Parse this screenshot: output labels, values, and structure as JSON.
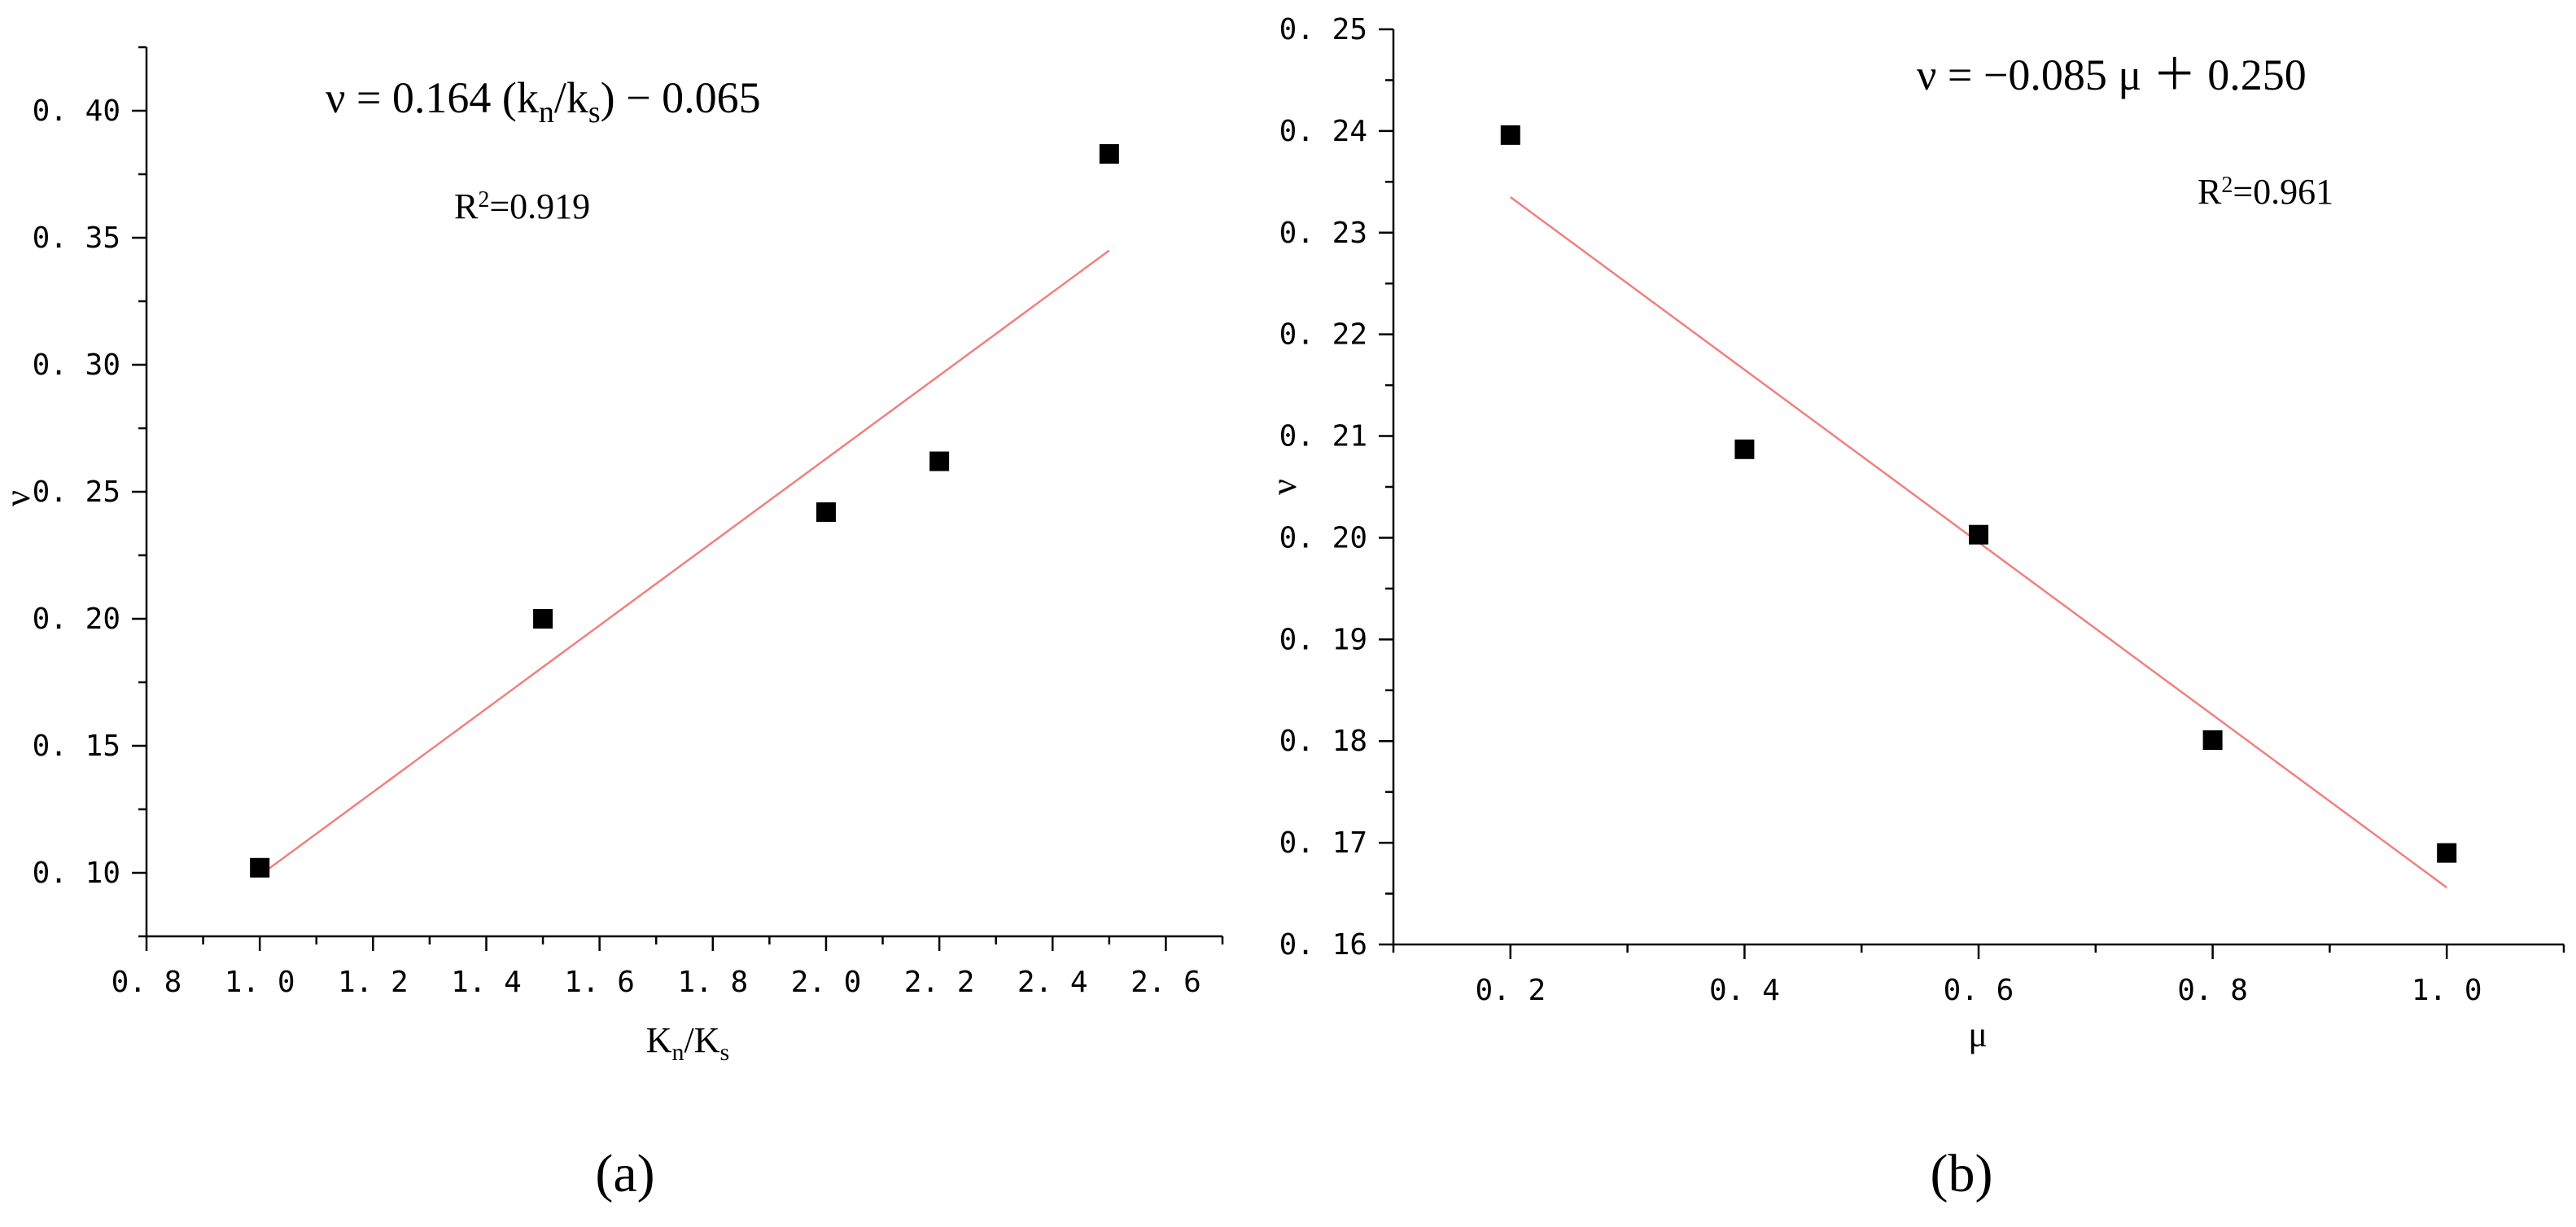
{
  "chart_data": [
    {
      "type": "scatter",
      "panel_label": "(a)",
      "xlabel": "K_n/K_s",
      "ylabel": "ν",
      "xlim": [
        0.8,
        2.7
      ],
      "ylim": [
        0.075,
        0.425
      ],
      "xticks": [
        0.8,
        1.0,
        1.2,
        1.4,
        1.6,
        1.8,
        2.0,
        2.2,
        2.4,
        2.6
      ],
      "xtick_labels": [
        "0. 8",
        "1. 0",
        "1. 2",
        "1. 4",
        "1. 6",
        "1. 8",
        "2. 0",
        "2. 2",
        "2. 4",
        "2. 6"
      ],
      "yticks": [
        0.1,
        0.15,
        0.2,
        0.25,
        0.3,
        0.35,
        0.4
      ],
      "ytick_labels": [
        "0. 10",
        "0. 15",
        "0. 20",
        "0. 25",
        "0. 30",
        "0. 35",
        "0. 40"
      ],
      "points": [
        {
          "x": 1.0,
          "y": 0.102
        },
        {
          "x": 1.5,
          "y": 0.2
        },
        {
          "x": 2.0,
          "y": 0.242
        },
        {
          "x": 2.2,
          "y": 0.262
        },
        {
          "x": 2.5,
          "y": 0.383
        }
      ],
      "fit": {
        "slope": 0.164,
        "intercept": -0.065,
        "x_range": [
          1.0,
          2.5
        ]
      },
      "equation": {
        "lhs": "ν",
        "eq": " = 0.164 (k",
        "sub1": "n",
        "mid": "/k",
        "sub2": "s",
        "rhs": ") − 0.065"
      },
      "r2": {
        "prefix": "R",
        "sup": "2",
        "value": "=0.919"
      },
      "grid": false,
      "colors": {
        "points": "#000000",
        "fit_line": "#f08080"
      }
    },
    {
      "type": "scatter",
      "panel_label": "(b)",
      "xlabel": "μ",
      "ylabel": "ν",
      "xlim": [
        0.1,
        1.1
      ],
      "ylim": [
        0.16,
        0.25
      ],
      "xticks": [
        0.2,
        0.4,
        0.6,
        0.8,
        1.0
      ],
      "xtick_labels": [
        "0. 2",
        "0. 4",
        "0. 6",
        "0. 8",
        "1. 0"
      ],
      "yticks": [
        0.16,
        0.17,
        0.18,
        0.19,
        0.2,
        0.21,
        0.22,
        0.23,
        0.24,
        0.25
      ],
      "ytick_labels": [
        "0. 16",
        "0. 17",
        "0. 18",
        "0. 19",
        "0. 20",
        "0. 21",
        "0. 22",
        "0. 23",
        "0. 24",
        "0. 25"
      ],
      "points": [
        {
          "x": 0.2,
          "y": 0.2396
        },
        {
          "x": 0.4,
          "y": 0.2087
        },
        {
          "x": 0.6,
          "y": 0.2003
        },
        {
          "x": 0.8,
          "y": 0.1801
        },
        {
          "x": 1.0,
          "y": 0.169
        }
      ],
      "fit": {
        "x_range": [
          0.2,
          1.0
        ],
        "y_range": [
          0.2335,
          0.1656
        ]
      },
      "equation": {
        "text": "ν  = −0.085 μ  ＋ 0.250"
      },
      "r2": {
        "prefix": "R",
        "sup": "2",
        "value": "=0.961"
      },
      "grid": false,
      "colors": {
        "points": "#000000",
        "fit_line": "#f08080"
      }
    }
  ]
}
